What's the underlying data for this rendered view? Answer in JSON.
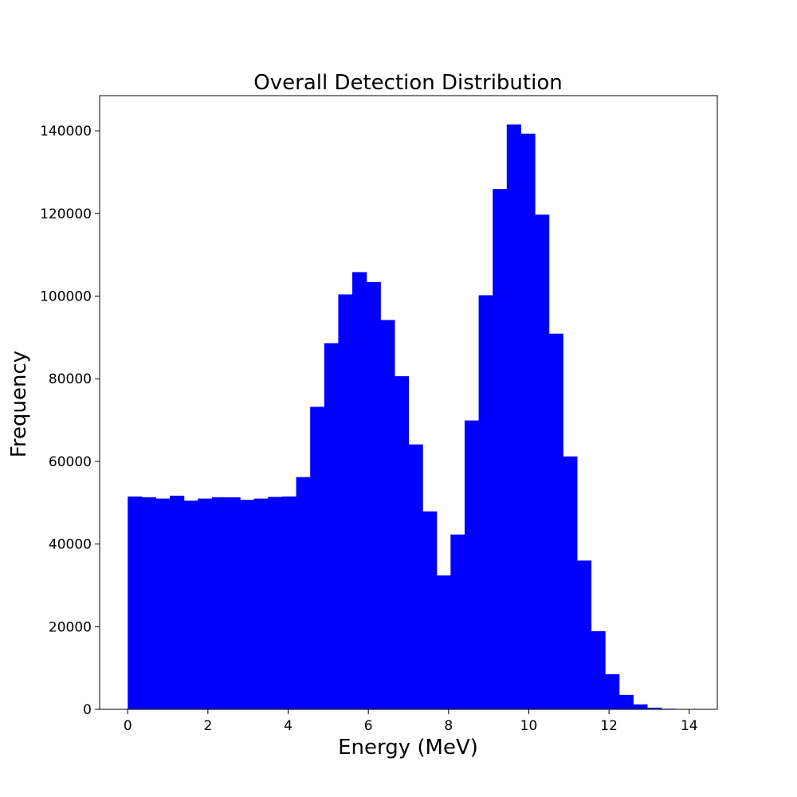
{
  "chart_data": {
    "type": "bar",
    "title": "Overall Detection Distribution",
    "xlabel": "Energy (MeV)",
    "ylabel": "Frequency",
    "bin_width": 0.35,
    "x_start": 0.0,
    "values": [
      51500,
      51300,
      51000,
      51700,
      50500,
      51000,
      51300,
      51300,
      50700,
      51000,
      51400,
      51500,
      56200,
      73200,
      88600,
      100400,
      105800,
      103400,
      94200,
      80600,
      64100,
      47900,
      32400,
      42300,
      69900,
      100200,
      125900,
      141500,
      139300,
      119700,
      90900,
      61200,
      36000,
      18900,
      8500,
      3500,
      1200,
      400,
      150
    ],
    "xlim": [
      -0.7,
      14.7
    ],
    "ylim": [
      0,
      148500
    ],
    "xticks": [
      0,
      2,
      4,
      6,
      8,
      10,
      12,
      14
    ],
    "xtick_labels": [
      "0",
      "2",
      "4",
      "6",
      "8",
      "10",
      "12",
      "14"
    ],
    "yticks": [
      0,
      20000,
      40000,
      60000,
      80000,
      100000,
      120000,
      140000
    ],
    "ytick_labels": [
      "0",
      "20000",
      "40000",
      "60000",
      "80000",
      "100000",
      "120000",
      "140000"
    ],
    "bar_color": "#0000ff",
    "grid": false,
    "legend": "none"
  }
}
